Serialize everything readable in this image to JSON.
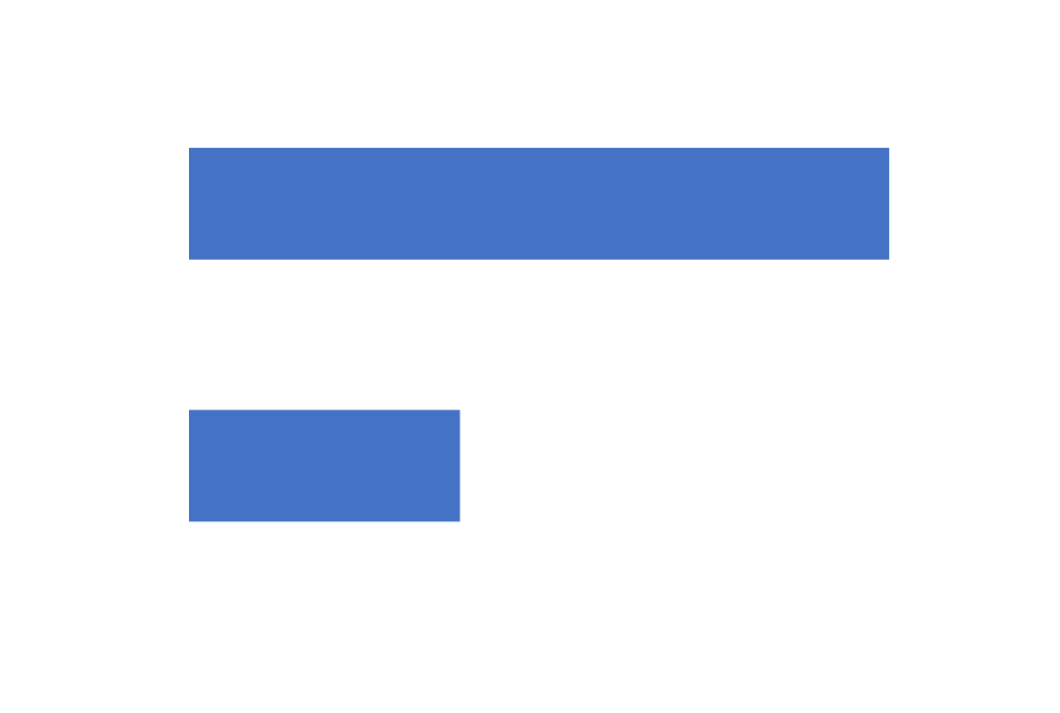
{
  "colors": {
    "background": "#ffffff",
    "bar": "#4472c4"
  },
  "chart_data": {
    "type": "bar",
    "orientation": "horizontal",
    "categories": [
      "",
      ""
    ],
    "values": [
      100,
      38.7
    ],
    "xlim": [
      0,
      100
    ],
    "title": "",
    "xlabel": "",
    "ylabel": "",
    "grid": false,
    "legend": "none"
  }
}
